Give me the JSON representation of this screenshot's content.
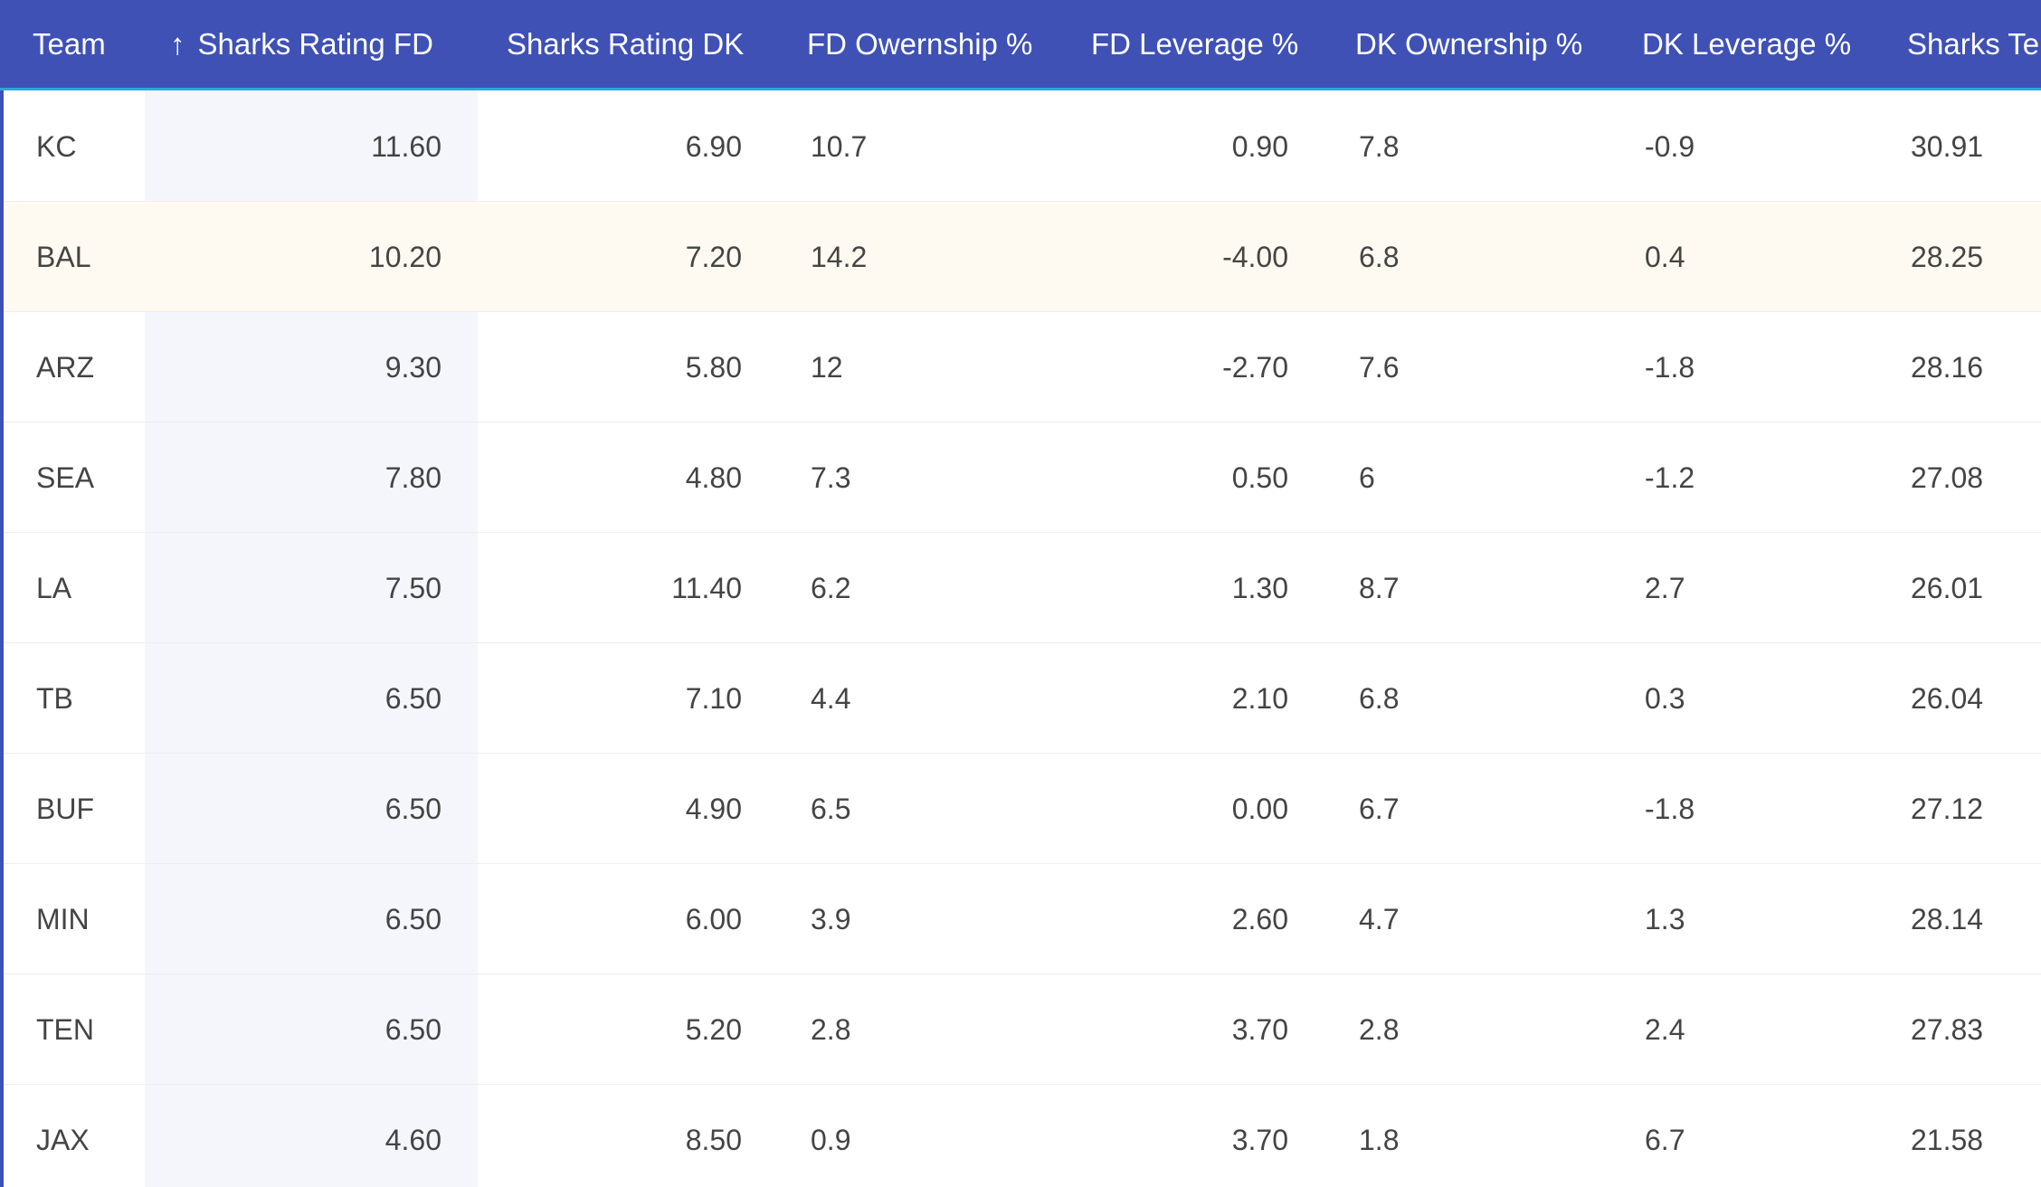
{
  "colors": {
    "header_bg": "#3f51b5",
    "header_text": "#ffffff",
    "header_underline": "#2ea6df",
    "sorted_column_bg": "#f4f6fb",
    "highlight_row_bg": "#fffaf1",
    "cell_text": "#444444"
  },
  "header": {
    "sort_icon": "arrow-up-icon",
    "sort_glyph": "↑",
    "columns": [
      "Team",
      "Sharks Rating FD",
      "Sharks Rating DK",
      "FD Owernship %",
      "FD Leverage %",
      "DK Ownership %",
      "DK Leverage %",
      "Sharks Te"
    ]
  },
  "highlighted_row": "BAL",
  "rows": [
    [
      "KC",
      "11.60",
      "6.90",
      "10.7",
      "0.90",
      "7.8",
      "-0.9",
      "30.91"
    ],
    [
      "BAL",
      "10.20",
      "7.20",
      "14.2",
      "-4.00",
      "6.8",
      "0.4",
      "28.25"
    ],
    [
      "ARZ",
      "9.30",
      "5.80",
      "12",
      "-2.70",
      "7.6",
      "-1.8",
      "28.16"
    ],
    [
      "SEA",
      "7.80",
      "4.80",
      "7.3",
      "0.50",
      "6",
      "-1.2",
      "27.08"
    ],
    [
      "LA",
      "7.50",
      "11.40",
      "6.2",
      "1.30",
      "8.7",
      "2.7",
      "26.01"
    ],
    [
      "TB",
      "6.50",
      "7.10",
      "4.4",
      "2.10",
      "6.8",
      "0.3",
      "26.04"
    ],
    [
      "BUF",
      "6.50",
      "4.90",
      "6.5",
      "0.00",
      "6.7",
      "-1.8",
      "27.12"
    ],
    [
      "MIN",
      "6.50",
      "6.00",
      "3.9",
      "2.60",
      "4.7",
      "1.3",
      "28.14"
    ],
    [
      "TEN",
      "6.50",
      "5.20",
      "2.8",
      "3.70",
      "2.8",
      "2.4",
      "27.83"
    ],
    [
      "JAX",
      "4.60",
      "8.50",
      "0.9",
      "3.70",
      "1.8",
      "6.7",
      "21.58"
    ]
  ]
}
